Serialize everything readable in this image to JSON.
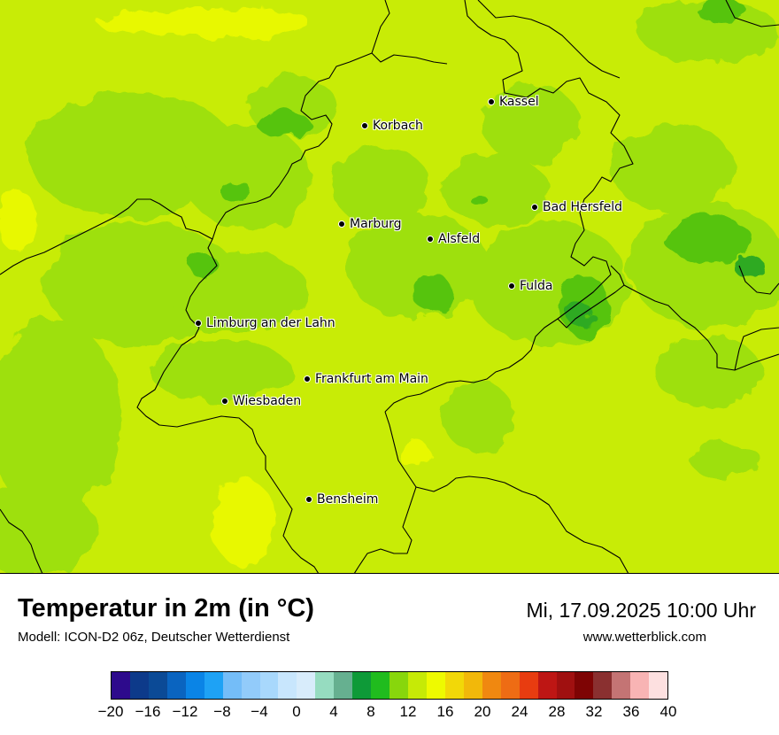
{
  "map": {
    "cities": [
      {
        "name": "Kassel"
      },
      {
        "name": "Korbach"
      },
      {
        "name": "Bad Hersfeld"
      },
      {
        "name": "Marburg"
      },
      {
        "name": "Alsfeld"
      },
      {
        "name": "Fulda"
      },
      {
        "name": "Limburg an der Lahn"
      },
      {
        "name": "Frankfurt am Main"
      },
      {
        "name": "Wiesbaden"
      },
      {
        "name": "Bensheim"
      }
    ]
  },
  "footer": {
    "title": "Temperatur in 2m (in °C)",
    "model": "Modell: ICON-D2 06z, Deutscher Wetterdienst",
    "datetime": "Mi, 17.09.2025 10:00 Uhr",
    "website": "www.wetterblick.com"
  },
  "legend": {
    "colors": [
      "#2d0a8c",
      "#0d3a8a",
      "#0b4a96",
      "#0a64c0",
      "#0a84e6",
      "#1ea2f5",
      "#74bdf8",
      "#92cbfa",
      "#a8d8fc",
      "#c8e6fd",
      "#d8ecfb",
      "#96dcc0",
      "#66b090",
      "#0e9a38",
      "#20bc1e",
      "#88d60c",
      "#c6ea06",
      "#eefa00",
      "#f2d808",
      "#f2b80a",
      "#f08810",
      "#ee6c14",
      "#e83c10",
      "#be1614",
      "#a01010",
      "#7e0404",
      "#8a3030",
      "#c47474",
      "#f8b4b4",
      "#fde0e0"
    ],
    "tick_labels": [
      "−20",
      "−16",
      "−12",
      "−8",
      "−4",
      "0",
      "4",
      "8",
      "12",
      "16",
      "20",
      "24",
      "28",
      "32",
      "36",
      "40"
    ]
  }
}
